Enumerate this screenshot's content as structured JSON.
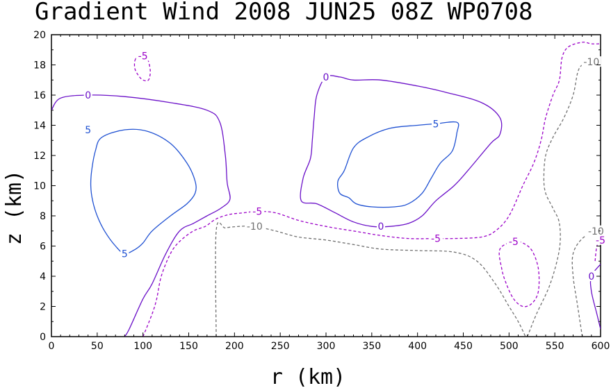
{
  "chart_data": {
    "type": "contour",
    "title": "Gradient Wind 2008 JUN25 08Z  WP0708",
    "xlabel": "r (km)",
    "ylabel": "z (km)",
    "xlim": [
      0,
      600
    ],
    "ylim": [
      0,
      20
    ],
    "xticks": [
      0,
      50,
      100,
      150,
      200,
      250,
      300,
      350,
      400,
      450,
      500,
      550,
      600
    ],
    "yticks": [
      0,
      2,
      4,
      6,
      8,
      10,
      12,
      14,
      16,
      18,
      20
    ],
    "levels": [
      {
        "value": 5,
        "label": "5",
        "color": "#1e50d2",
        "dashed": false
      },
      {
        "value": 0,
        "label": "0",
        "color": "#6a0fc8",
        "dashed": false
      },
      {
        "value": -5,
        "label": "-5",
        "color": "#9b00c8",
        "dashed": true
      },
      {
        "value": -10,
        "label": "-10",
        "color": "#707070",
        "dashed": true
      }
    ],
    "contours": [
      {
        "level": 5,
        "closed": true,
        "label_at": [
          [
            40,
            13.7
          ],
          [
            80,
            5.5
          ]
        ],
        "points": [
          [
            55,
            13.2
          ],
          [
            80,
            13.7
          ],
          [
            105,
            13.6
          ],
          [
            130,
            12.8
          ],
          [
            148,
            11.5
          ],
          [
            157,
            10.3
          ],
          [
            157,
            9.5
          ],
          [
            148,
            8.8
          ],
          [
            130,
            8.0
          ],
          [
            110,
            7.0
          ],
          [
            100,
            6.2
          ],
          [
            92,
            5.8
          ],
          [
            80,
            5.5
          ],
          [
            70,
            6.0
          ],
          [
            58,
            7.0
          ],
          [
            50,
            8.0
          ],
          [
            45,
            9.0
          ],
          [
            43,
            10.0
          ],
          [
            44,
            11.0
          ],
          [
            48,
            12.3
          ]
        ]
      },
      {
        "level": 5,
        "closed": true,
        "label_at": [
          [
            420,
            14.1
          ]
        ],
        "points": [
          [
            320,
            11.0
          ],
          [
            330,
            12.5
          ],
          [
            345,
            13.2
          ],
          [
            370,
            13.8
          ],
          [
            400,
            14.0
          ],
          [
            420,
            14.1
          ],
          [
            443,
            14.2
          ],
          [
            443,
            13.5
          ],
          [
            438,
            12.3
          ],
          [
            425,
            11.5
          ],
          [
            415,
            10.5
          ],
          [
            405,
            9.5
          ],
          [
            390,
            8.8
          ],
          [
            375,
            8.6
          ],
          [
            350,
            8.6
          ],
          [
            333,
            8.8
          ],
          [
            325,
            9.2
          ],
          [
            315,
            9.5
          ],
          [
            313,
            10.3
          ]
        ]
      },
      {
        "level": 0,
        "closed": false,
        "label_at": [
          [
            40,
            16.0
          ]
        ],
        "points": [
          [
            0,
            15.0
          ],
          [
            10,
            15.8
          ],
          [
            40,
            16.0
          ],
          [
            80,
            15.9
          ],
          [
            130,
            15.5
          ],
          [
            170,
            15.0
          ],
          [
            184,
            14.2
          ],
          [
            190,
            12.0
          ],
          [
            192,
            10.2
          ],
          [
            195,
            9.1
          ],
          [
            185,
            8.5
          ],
          [
            170,
            8.0
          ],
          [
            155,
            7.5
          ],
          [
            140,
            7.0
          ],
          [
            125,
            5.5
          ],
          [
            110,
            3.5
          ],
          [
            100,
            2.5
          ],
          [
            85,
            0.5
          ],
          [
            80,
            0
          ]
        ]
      },
      {
        "level": 0,
        "closed": true,
        "label_at": [
          [
            300,
            17.2
          ],
          [
            360,
            7.3
          ]
        ],
        "points": [
          [
            300,
            17.2
          ],
          [
            315,
            17.2
          ],
          [
            330,
            17.0
          ],
          [
            360,
            17.0
          ],
          [
            400,
            16.6
          ],
          [
            430,
            16.2
          ],
          [
            470,
            15.5
          ],
          [
            490,
            14.5
          ],
          [
            490,
            13.4
          ],
          [
            480,
            12.8
          ],
          [
            455,
            11.0
          ],
          [
            440,
            10.0
          ],
          [
            420,
            9.0
          ],
          [
            405,
            8.0
          ],
          [
            390,
            7.5
          ],
          [
            370,
            7.3
          ],
          [
            350,
            7.3
          ],
          [
            330,
            7.6
          ],
          [
            310,
            8.2
          ],
          [
            290,
            8.8
          ],
          [
            273,
            9.0
          ],
          [
            275,
            10.5
          ],
          [
            283,
            11.8
          ],
          [
            285,
            13.0
          ],
          [
            287,
            14.5
          ],
          [
            290,
            16.0
          ]
        ]
      },
      {
        "level": 0,
        "closed": false,
        "label_at": [
          [
            590,
            4.0
          ]
        ],
        "points": [
          [
            600,
            4.8
          ],
          [
            590,
            4.0
          ],
          [
            590,
            3.0
          ],
          [
            596,
            1.5
          ],
          [
            600,
            0.5
          ]
        ]
      },
      {
        "level": -5,
        "closed": true,
        "label_at": [
          [
            100,
            18.6
          ]
        ],
        "points": [
          [
            92,
            18.4
          ],
          [
            100,
            18.6
          ],
          [
            105,
            18.4
          ],
          [
            108,
            17.6
          ],
          [
            106,
            17.0
          ],
          [
            100,
            17.0
          ],
          [
            95,
            17.3
          ],
          [
            91,
            17.8
          ]
        ]
      },
      {
        "level": -5,
        "closed": false,
        "label_at": [
          [
            225,
            8.3
          ],
          [
            420,
            6.5
          ]
        ],
        "points": [
          [
            100,
            0
          ],
          [
            110,
            1.5
          ],
          [
            115,
            2.5
          ],
          [
            120,
            4.0
          ],
          [
            130,
            5.5
          ],
          [
            140,
            6.3
          ],
          [
            155,
            7.0
          ],
          [
            168,
            7.3
          ],
          [
            180,
            7.8
          ],
          [
            195,
            8.1
          ],
          [
            210,
            8.2
          ],
          [
            225,
            8.3
          ],
          [
            245,
            8.2
          ],
          [
            270,
            7.7
          ],
          [
            300,
            7.3
          ],
          [
            330,
            7.0
          ],
          [
            360,
            6.7
          ],
          [
            390,
            6.5
          ],
          [
            420,
            6.5
          ],
          [
            440,
            6.5
          ],
          [
            470,
            6.6
          ],
          [
            485,
            7.0
          ],
          [
            500,
            8.0
          ],
          [
            515,
            10.0
          ],
          [
            527,
            11.5
          ],
          [
            535,
            13.0
          ],
          [
            540,
            14.5
          ],
          [
            548,
            16.0
          ],
          [
            555,
            17.0
          ],
          [
            558,
            18.5
          ],
          [
            565,
            19.2
          ],
          [
            580,
            19.5
          ],
          [
            590,
            19.4
          ],
          [
            600,
            19.4
          ]
        ]
      },
      {
        "level": -5,
        "closed": true,
        "label_at": [
          [
            505,
            6.3
          ]
        ],
        "points": [
          [
            505,
            6.3
          ],
          [
            515,
            6.2
          ],
          [
            525,
            5.7
          ],
          [
            532,
            4.5
          ],
          [
            532,
            3.0
          ],
          [
            525,
            2.2
          ],
          [
            515,
            2.0
          ],
          [
            505,
            2.5
          ],
          [
            497,
            3.5
          ],
          [
            492,
            4.5
          ],
          [
            490,
            5.8
          ]
        ]
      },
      {
        "level": -5,
        "closed": false,
        "label_at": [
          [
            600,
            6.4
          ]
        ],
        "points": [
          [
            600,
            6.4
          ],
          [
            596,
            6.0
          ],
          [
            594,
            5.0
          ]
        ]
      },
      {
        "level": -10,
        "closed": false,
        "label_at": [
          [
            222,
            7.3
          ]
        ],
        "points": [
          [
            180,
            0
          ],
          [
            180,
            7.0
          ],
          [
            190,
            7.2
          ],
          [
            205,
            7.3
          ],
          [
            222,
            7.3
          ],
          [
            245,
            7.0
          ],
          [
            270,
            6.6
          ],
          [
            300,
            6.4
          ],
          [
            330,
            6.1
          ],
          [
            360,
            5.8
          ],
          [
            400,
            5.7
          ],
          [
            440,
            5.6
          ],
          [
            465,
            5.0
          ],
          [
            485,
            3.5
          ],
          [
            500,
            2.0
          ],
          [
            510,
            1.0
          ],
          [
            518,
            0
          ]
        ]
      },
      {
        "level": -10,
        "closed": false,
        "label_at": [
          [
            590,
            18.2
          ]
        ],
        "points": [
          [
            520,
            0
          ],
          [
            530,
            1.5
          ],
          [
            545,
            3.5
          ],
          [
            555,
            5.8
          ],
          [
            555,
            7.5
          ],
          [
            548,
            8.5
          ],
          [
            540,
            9.5
          ],
          [
            538,
            10.5
          ],
          [
            540,
            12.0
          ],
          [
            548,
            13.2
          ],
          [
            560,
            14.5
          ],
          [
            570,
            16.0
          ],
          [
            575,
            17.5
          ],
          [
            580,
            18.0
          ],
          [
            590,
            18.2
          ],
          [
            600,
            18.2
          ]
        ]
      },
      {
        "level": -10,
        "closed": false,
        "label_at": [
          [
            595,
            7.0
          ]
        ],
        "points": [
          [
            580,
            0
          ],
          [
            575,
            2.0
          ],
          [
            570,
            4.0
          ],
          [
            570,
            5.5
          ],
          [
            580,
            6.5
          ],
          [
            595,
            7.0
          ],
          [
            600,
            7.2
          ]
        ]
      }
    ]
  }
}
